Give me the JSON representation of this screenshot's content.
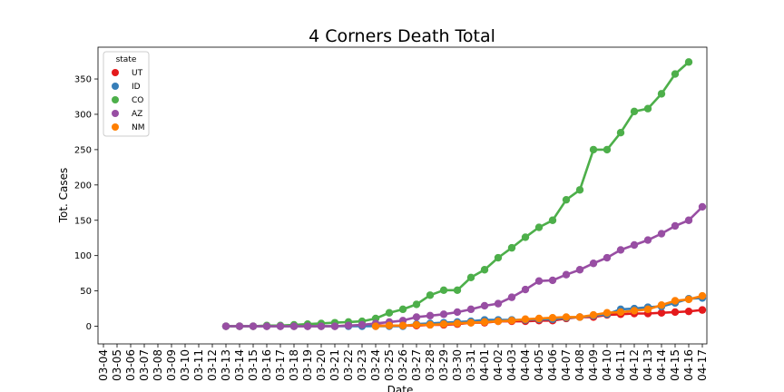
{
  "chart_data": {
    "type": "line",
    "title": "4 Corners Death Total",
    "xlabel": "Date",
    "ylabel": "Tot. Cases",
    "ylim": [
      -25,
      395
    ],
    "yticks": [
      0,
      50,
      100,
      150,
      200,
      250,
      300,
      350
    ],
    "grid": false,
    "legend": {
      "title": "state",
      "placement": "top-left"
    },
    "categories": [
      "03-04",
      "03-05",
      "03-06",
      "03-07",
      "03-08",
      "03-09",
      "03-10",
      "03-11",
      "03-12",
      "03-13",
      "03-14",
      "03-15",
      "03-16",
      "03-17",
      "03-18",
      "03-19",
      "03-20",
      "03-21",
      "03-22",
      "03-23",
      "03-24",
      "03-25",
      "03-26",
      "03-27",
      "03-28",
      "03-29",
      "03-30",
      "03-31",
      "04-01",
      "04-02",
      "04-03",
      "04-04",
      "04-05",
      "04-06",
      "04-07",
      "04-08",
      "04-09",
      "04-10",
      "04-11",
      "04-12",
      "04-13",
      "04-14",
      "04-15",
      "04-16",
      "04-17"
    ],
    "series": [
      {
        "name": "UT",
        "color": "#e41a1c",
        "values": [
          null,
          null,
          null,
          null,
          null,
          null,
          null,
          null,
          null,
          0,
          0,
          0,
          0,
          0,
          0,
          0,
          0,
          0,
          1,
          1,
          1,
          1,
          1,
          1,
          2,
          2,
          3,
          5,
          5,
          7,
          7,
          7,
          8,
          8,
          11,
          13,
          13,
          16,
          17,
          18,
          18,
          19,
          20,
          21,
          23
        ]
      },
      {
        "name": "ID",
        "color": "#377eb8",
        "values": [
          null,
          null,
          null,
          null,
          null,
          null,
          null,
          null,
          null,
          0,
          0,
          0,
          0,
          0,
          0,
          0,
          0,
          0,
          0,
          0,
          0,
          0,
          0,
          3,
          4,
          5,
          6,
          7,
          9,
          9,
          9,
          9,
          10,
          10,
          12,
          13,
          15,
          17,
          24,
          25,
          27,
          28,
          33,
          39,
          40
        ]
      },
      {
        "name": "CO",
        "color": "#4daf4a",
        "values": [
          null,
          null,
          null,
          null,
          null,
          null,
          null,
          null,
          null,
          0,
          0,
          0,
          1,
          1,
          2,
          3,
          4,
          5,
          6,
          7,
          11,
          19,
          24,
          31,
          44,
          51,
          51,
          69,
          80,
          97,
          111,
          126,
          140,
          150,
          179,
          193,
          250,
          250,
          274,
          304,
          308,
          329,
          357,
          374,
          null
        ]
      },
      {
        "name": "AZ",
        "color": "#984ea3",
        "values": [
          null,
          null,
          null,
          null,
          null,
          null,
          null,
          null,
          null,
          0,
          0,
          0,
          0,
          0,
          0,
          0,
          0,
          0,
          1,
          2,
          4,
          6,
          8,
          13,
          15,
          17,
          20,
          24,
          29,
          32,
          41,
          52,
          64,
          65,
          73,
          80,
          89,
          97,
          108,
          115,
          122,
          131,
          142,
          150,
          169
        ]
      },
      {
        "name": "NM",
        "color": "#ff7f00",
        "values": [
          null,
          null,
          null,
          null,
          null,
          null,
          null,
          null,
          null,
          null,
          null,
          null,
          null,
          null,
          null,
          null,
          null,
          null,
          null,
          null,
          0,
          1,
          1,
          2,
          2,
          3,
          4,
          5,
          6,
          7,
          8,
          10,
          11,
          12,
          13,
          13,
          16,
          19,
          20,
          22,
          24,
          30,
          36,
          38,
          43
        ]
      }
    ]
  }
}
